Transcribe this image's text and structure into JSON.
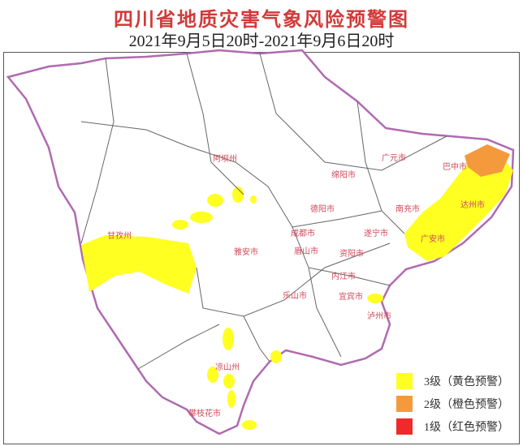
{
  "title": "四川省地质灾害气象风险预警图",
  "subtitle": "2021年9月5日20时-2021年9月6日20时",
  "colors": {
    "level3": "#ffff22",
    "level2": "#f59a3c",
    "level1": "#ee2a2a",
    "border_province": "#b06ab0",
    "border": "#555555"
  },
  "legend": [
    {
      "label": "3级（黄色预警）",
      "color": "#ffff22"
    },
    {
      "label": "2级（橙色预警）",
      "color": "#f59a3c"
    },
    {
      "label": "1级（红色预警）",
      "color": "#ee2a2a"
    }
  ],
  "cities": [
    "阿坝州",
    "甘孜州",
    "凉山州",
    "攀枝花市",
    "绵阳市",
    "德阳市",
    "成都市",
    "雅安市",
    "眉山市",
    "资阳市",
    "内江市",
    "乐山市",
    "宜宾市",
    "泸州市",
    "遂宁市",
    "南充市",
    "广元市",
    "巴中市",
    "达州市",
    "广安市"
  ]
}
